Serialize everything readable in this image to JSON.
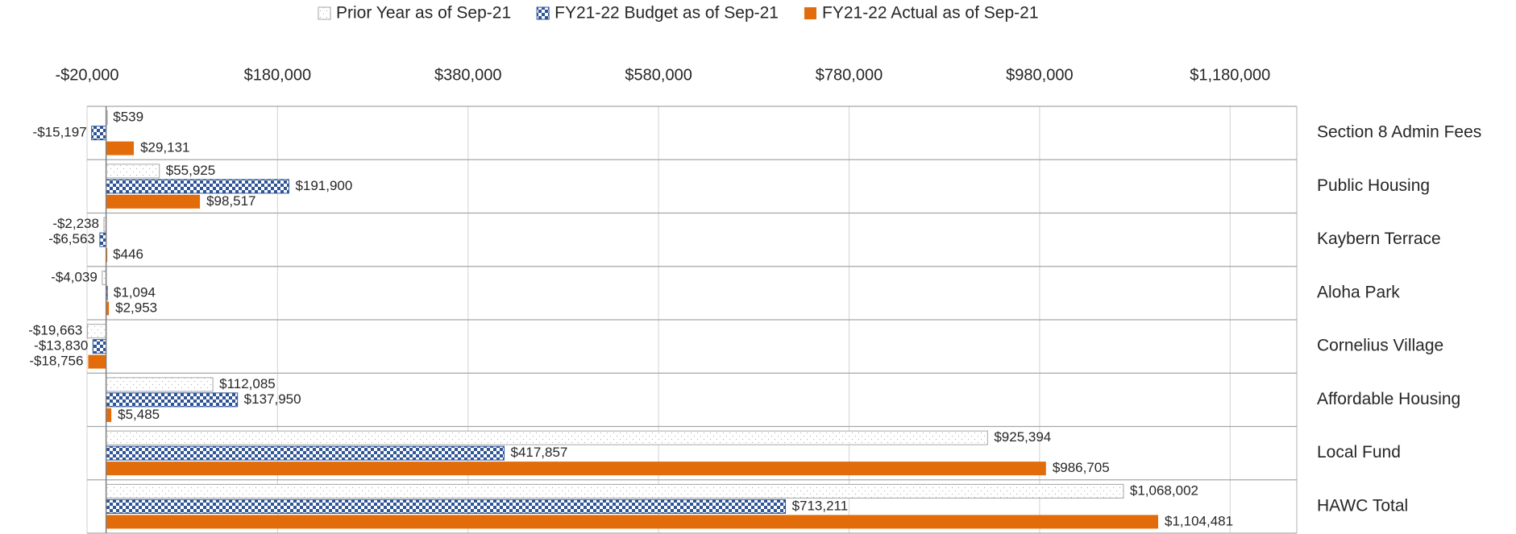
{
  "chart_data": {
    "type": "bar",
    "orientation": "horizontal",
    "categories": [
      "Section 8 Admin Fees",
      "Public Housing",
      "Kaybern Terrace",
      "Aloha Park",
      "Cornelius Village",
      "Affordable Housing",
      "Local Fund",
      "HAWC Total"
    ],
    "series": [
      {
        "name": "Prior Year as of Sep-21",
        "color": "#a6a6a6",
        "pattern": "dotted",
        "values": [
          539,
          55925,
          -2238,
          -4039,
          -19663,
          112085,
          925394,
          1068002
        ],
        "value_labels": [
          "$539",
          "$55,925",
          "-$2,238",
          "-$4,039",
          "-$19,663",
          "$112,085",
          "$925,394",
          "$1,068,002"
        ]
      },
      {
        "name": "FY21-22 Budget as of Sep-21",
        "color": "#2f5597",
        "pattern": "checker",
        "values": [
          -15197,
          191900,
          -6563,
          1094,
          -13830,
          137950,
          417857,
          713211
        ],
        "value_labels": [
          "-$15,197",
          "$191,900",
          "-$6,563",
          "$1,094",
          "-$13,830",
          "$137,950",
          "$417,857",
          "$713,211"
        ]
      },
      {
        "name": "FY21-22 Actual as of Sep-21",
        "color": "#e36c0a",
        "pattern": "solid",
        "values": [
          29131,
          98517,
          446,
          2953,
          -18756,
          5485,
          986705,
          1104481
        ],
        "value_labels": [
          "$29,131",
          "$98,517",
          "$446",
          "$2,953",
          "-$18,756",
          "$5,485",
          "$986,705",
          "$1,104,481"
        ]
      }
    ],
    "xlim": [
      -20000,
      1250000
    ],
    "xticks": [
      {
        "value": -20000,
        "label": "-$20,000"
      },
      {
        "value": 180000,
        "label": "$180,000"
      },
      {
        "value": 380000,
        "label": "$380,000"
      },
      {
        "value": 580000,
        "label": "$580,000"
      },
      {
        "value": 780000,
        "label": "$780,000"
      },
      {
        "value": 980000,
        "label": "$980,000"
      },
      {
        "value": 1180000,
        "label": "$1,180,000"
      }
    ],
    "grid": true,
    "legend": "top"
  }
}
